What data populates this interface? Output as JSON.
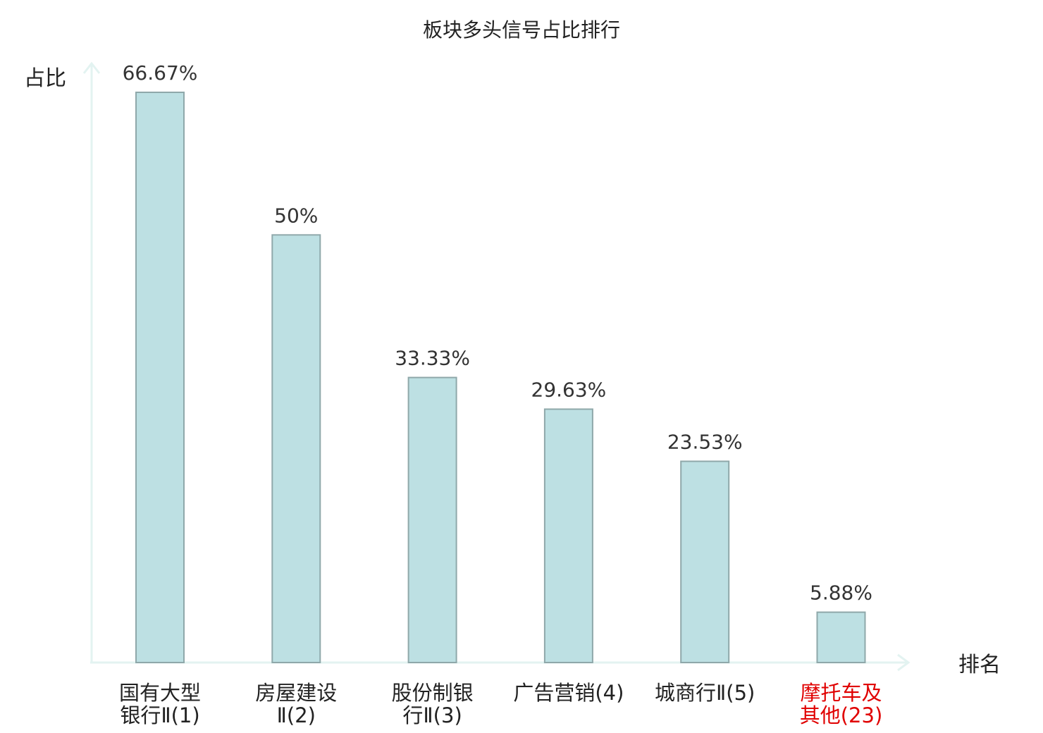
{
  "chart_data": {
    "type": "bar",
    "title": "板块多头信号占比排行",
    "ylabel": "占比",
    "xlabel": "排名",
    "ylim": [
      0,
      70
    ],
    "grid": false,
    "legend": "none",
    "categories": [
      [
        "国有大型",
        "银行Ⅱ(1)"
      ],
      [
        "房屋建设",
        "Ⅱ(2)"
      ],
      [
        "股份制银",
        "行Ⅱ(3)"
      ],
      [
        "广告营销(4)"
      ],
      [
        "城商行Ⅱ(5)"
      ],
      [
        "摩托车及",
        "其他(23)"
      ]
    ],
    "values": [
      66.67,
      50,
      33.33,
      29.63,
      23.53,
      5.88
    ],
    "value_labels": [
      "66.67%",
      "50%",
      "33.33%",
      "29.63%",
      "23.53%",
      "5.88%"
    ],
    "highlight_index": 5,
    "colors": {
      "bar_fill": "#bde0e3",
      "bar_stroke": "#8fa8aa",
      "axis": "#e3f3f1",
      "highlight_text": "#e00000"
    }
  }
}
